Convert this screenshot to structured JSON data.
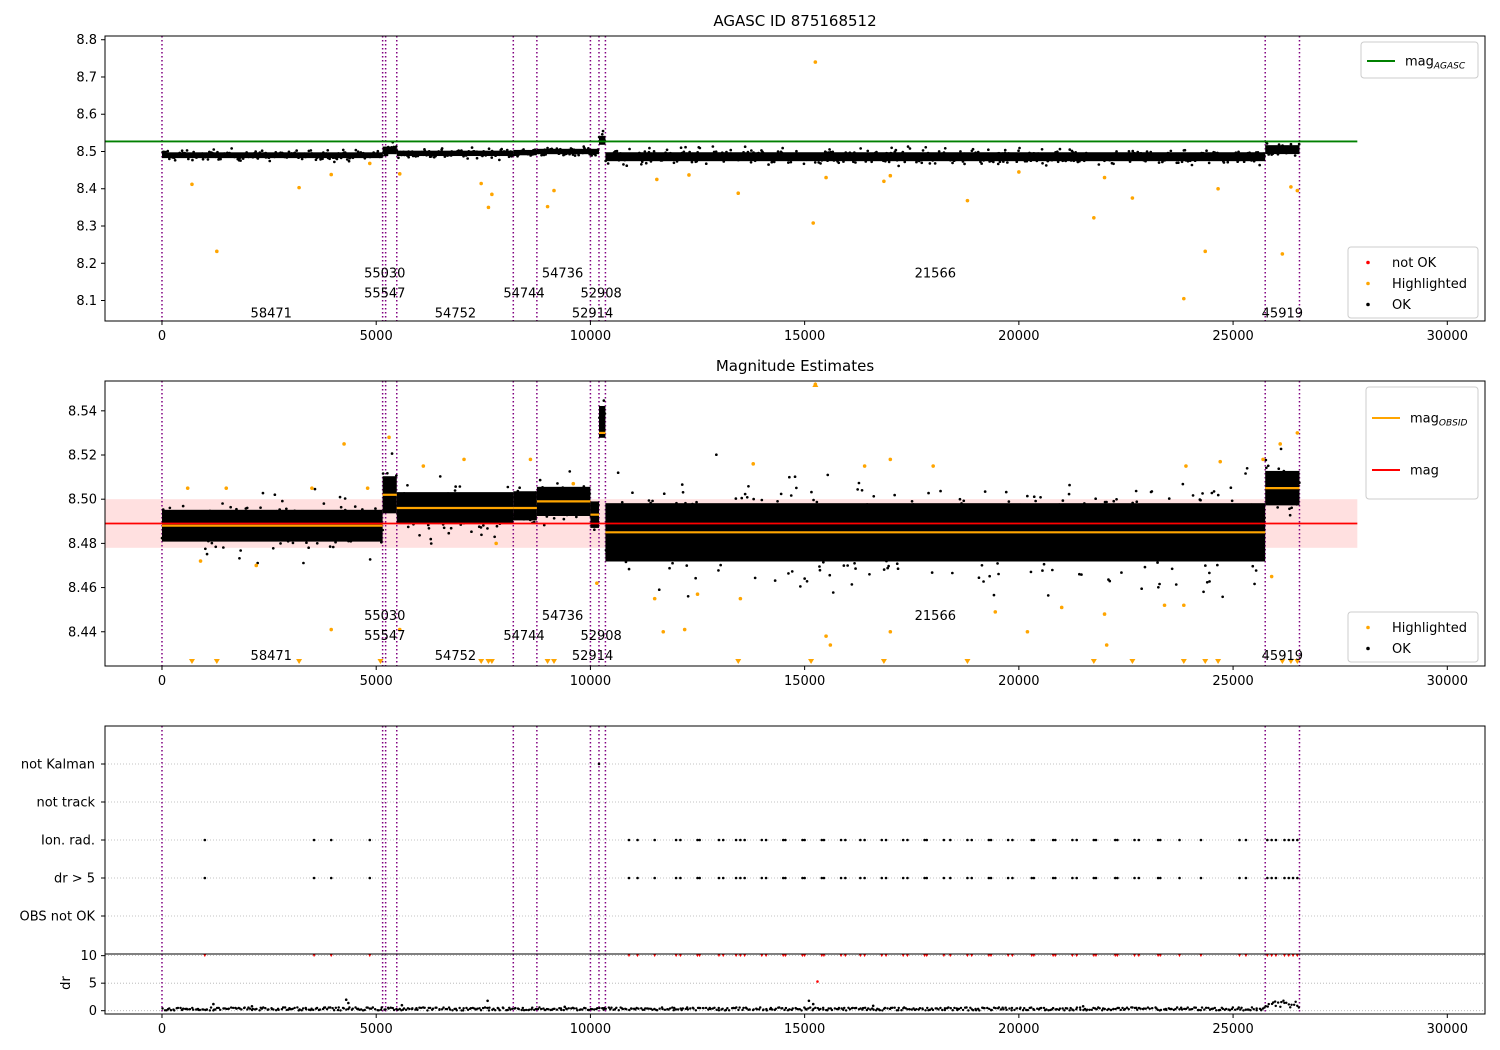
{
  "chart_data": [
    {
      "type": "scatter",
      "title": "AGASC ID 875168512",
      "xlabel": "",
      "ylabel": "",
      "xlim": [
        -1330,
        30880
      ],
      "ylim": [
        8.045,
        8.81
      ],
      "xticks": [
        0,
        5000,
        10000,
        15000,
        20000,
        25000,
        30000
      ],
      "yticks": [
        8.1,
        8.2,
        8.3,
        8.4,
        8.5,
        8.6,
        8.7,
        8.8
      ],
      "ytick_labels": [
        "8.1",
        "8.2",
        "8.3",
        "8.4",
        "8.5",
        "8.6",
        "8.7",
        "8.8"
      ],
      "grid": false,
      "legends": [
        {
          "loc": "upper right",
          "entries": [
            {
              "label": "mag",
              "sub": "AGASC",
              "color": "#008000",
              "marker": "line"
            }
          ]
        },
        {
          "loc": "lower right",
          "entries": [
            {
              "label": "not OK",
              "color": "#ff0000",
              "marker": "dot"
            },
            {
              "label": "Highlighted",
              "color": "#ffa500",
              "marker": "dot"
            },
            {
              "label": "OK",
              "color": "#000000",
              "marker": "dot"
            }
          ]
        }
      ],
      "hlines": [
        {
          "name": "mag_AGASC",
          "y": 8.527,
          "x_range": [
            -1330,
            27900
          ],
          "color": "#008000"
        }
      ],
      "ok_band": {
        "color": "#000000",
        "segments": [
          {
            "x": [
              0,
              5150
            ],
            "y_center": 8.49,
            "half_width": 0.013
          },
          {
            "x": [
              5150,
              5480
            ],
            "y_center": 8.503,
            "half_width": 0.017
          },
          {
            "x": [
              5480,
              8200
            ],
            "y_center": 8.495,
            "half_width": 0.012
          },
          {
            "x": [
              8200,
              8750
            ],
            "y_center": 8.497,
            "half_width": 0.012
          },
          {
            "x": [
              8750,
              10200
            ],
            "y_center": 8.5,
            "half_width": 0.012
          },
          {
            "x": [
              10200,
              10350
            ],
            "y_center": 8.53,
            "half_width": 0.02
          },
          {
            "x": [
              10350,
              25750
            ],
            "y_center": 8.486,
            "half_width": 0.02
          },
          {
            "x": [
              25750,
              26550
            ],
            "y_center": 8.505,
            "half_width": 0.02
          }
        ]
      },
      "highlighted_points": [
        [
          700,
          8.412
        ],
        [
          1280,
          8.232
        ],
        [
          3200,
          8.403
        ],
        [
          3950,
          8.438
        ],
        [
          4850,
          8.468
        ],
        [
          5550,
          8.44
        ],
        [
          7450,
          8.414
        ],
        [
          7620,
          8.35
        ],
        [
          7700,
          8.385
        ],
        [
          9000,
          8.352
        ],
        [
          9150,
          8.395
        ],
        [
          11550,
          8.425
        ],
        [
          12300,
          8.437
        ],
        [
          13450,
          8.388
        ],
        [
          15200,
          8.308
        ],
        [
          15250,
          8.74
        ],
        [
          15500,
          8.43
        ],
        [
          16850,
          8.42
        ],
        [
          17000,
          8.435
        ],
        [
          18800,
          8.368
        ],
        [
          20000,
          8.445
        ],
        [
          21750,
          8.322
        ],
        [
          22000,
          8.43
        ],
        [
          22650,
          8.375
        ],
        [
          23850,
          8.105
        ],
        [
          24350,
          8.232
        ],
        [
          24650,
          8.4
        ],
        [
          26150,
          8.225
        ],
        [
          26350,
          8.405
        ],
        [
          26500,
          8.395
        ]
      ],
      "not_ok_points": [],
      "vlines": {
        "color": "#800080",
        "style": "dotted",
        "x": [
          0,
          5150,
          5220,
          5480,
          8200,
          8750,
          10000,
          10200,
          10350,
          25750,
          26550
        ]
      },
      "obsid_labels": [
        {
          "text": "58471",
          "x": 2550,
          "y": 8.068
        },
        {
          "text": "55030",
          "x": 5200,
          "y": 8.175
        },
        {
          "text": "55547",
          "x": 5200,
          "y": 8.121
        },
        {
          "text": "54752",
          "x": 6850,
          "y": 8.068
        },
        {
          "text": "54744",
          "x": 8450,
          "y": 8.121
        },
        {
          "text": "54736",
          "x": 9350,
          "y": 8.175
        },
        {
          "text": "52908",
          "x": 10250,
          "y": 8.121
        },
        {
          "text": "52914",
          "x": 10050,
          "y": 8.068
        },
        {
          "text": "21566",
          "x": 18050,
          "y": 8.175
        },
        {
          "text": "45919",
          "x": 26150,
          "y": 8.068
        }
      ]
    },
    {
      "type": "scatter",
      "title": "Magnitude Estimates",
      "xlabel": "",
      "ylabel": "",
      "xlim": [
        -1330,
        30880
      ],
      "ylim": [
        8.4245,
        8.5535
      ],
      "xticks": [
        0,
        5000,
        10000,
        15000,
        20000,
        25000,
        30000
      ],
      "yticks": [
        8.44,
        8.46,
        8.48,
        8.5,
        8.52,
        8.54
      ],
      "ytick_labels": [
        "8.44",
        "8.46",
        "8.48",
        "8.50",
        "8.52",
        "8.54"
      ],
      "grid": false,
      "legends": [
        {
          "loc": "upper right",
          "entries": [
            {
              "label": "mag",
              "sub": "OBSID",
              "color": "#ffa500",
              "marker": "line"
            },
            {
              "label": "mag",
              "sub": "",
              "color": "#ff0000",
              "marker": "line"
            }
          ]
        },
        {
          "loc": "lower right",
          "entries": [
            {
              "label": "Highlighted",
              "color": "#ffa500",
              "marker": "dot"
            },
            {
              "label": "OK",
              "color": "#000000",
              "marker": "dot"
            }
          ]
        }
      ],
      "mag": {
        "y": 8.489,
        "band": [
          8.478,
          8.5
        ],
        "x_range": [
          -1330,
          27900
        ],
        "color": "#ff0000"
      },
      "obsid_means": [
        {
          "x": [
            0,
            5150
          ],
          "y": 8.488
        },
        {
          "x": [
            5150,
            5480
          ],
          "y": 8.502
        },
        {
          "x": [
            5480,
            8200
          ],
          "y": 8.496
        },
        {
          "x": [
            8200,
            8750
          ],
          "y": 8.496
        },
        {
          "x": [
            8750,
            10000
          ],
          "y": 8.499
        },
        {
          "x": [
            10000,
            10200
          ],
          "y": 8.493
        },
        {
          "x": [
            10200,
            10350
          ],
          "y": 8.53
        },
        {
          "x": [
            10350,
            25750
          ],
          "y": 8.485
        },
        {
          "x": [
            25750,
            26550
          ],
          "y": 8.505
        }
      ],
      "ok_band": {
        "color": "#000000",
        "segments": [
          {
            "x": [
              0,
              5150
            ],
            "y_center": 8.488,
            "half_width": 0.012
          },
          {
            "x": [
              5150,
              5480
            ],
            "y_center": 8.502,
            "half_width": 0.014
          },
          {
            "x": [
              5480,
              8200
            ],
            "y_center": 8.496,
            "half_width": 0.012
          },
          {
            "x": [
              8200,
              8750
            ],
            "y_center": 8.497,
            "half_width": 0.011
          },
          {
            "x": [
              8750,
              10000
            ],
            "y_center": 8.499,
            "half_width": 0.011
          },
          {
            "x": [
              10000,
              10200
            ],
            "y_center": 8.493,
            "half_width": 0.01
          },
          {
            "x": [
              10200,
              10350
            ],
            "y_center": 8.535,
            "half_width": 0.012
          },
          {
            "x": [
              10350,
              25750
            ],
            "y_center": 8.485,
            "half_width": 0.022
          },
          {
            "x": [
              25750,
              26550
            ],
            "y_center": 8.505,
            "half_width": 0.013
          }
        ]
      },
      "highlighted_points": [
        [
          600,
          8.505
        ],
        [
          900,
          8.472
        ],
        [
          1500,
          8.505
        ],
        [
          2200,
          8.47
        ],
        [
          3500,
          8.505
        ],
        [
          3950,
          8.441
        ],
        [
          4250,
          8.525
        ],
        [
          4800,
          8.505
        ],
        [
          5300,
          8.528
        ],
        [
          5550,
          8.441
        ],
        [
          6100,
          8.515
        ],
        [
          7050,
          8.518
        ],
        [
          7800,
          8.48
        ],
        [
          8600,
          8.518
        ],
        [
          9600,
          8.507
        ],
        [
          10150,
          8.462
        ],
        [
          11500,
          8.455
        ],
        [
          11700,
          8.44
        ],
        [
          12200,
          8.441
        ],
        [
          12500,
          8.457
        ],
        [
          13500,
          8.455
        ],
        [
          13800,
          8.516
        ],
        [
          15250,
          8.552
        ],
        [
          15500,
          8.438
        ],
        [
          15600,
          8.434
        ],
        [
          16400,
          8.515
        ],
        [
          17000,
          8.518
        ],
        [
          17000,
          8.44
        ],
        [
          18000,
          8.515
        ],
        [
          19450,
          8.449
        ],
        [
          20200,
          8.44
        ],
        [
          21000,
          8.451
        ],
        [
          22000,
          8.448
        ],
        [
          22050,
          8.434
        ],
        [
          23400,
          8.452
        ],
        [
          23850,
          8.452
        ],
        [
          23900,
          8.515
        ],
        [
          24700,
          8.517
        ],
        [
          25700,
          8.518
        ],
        [
          25900,
          8.465
        ],
        [
          26100,
          8.525
        ],
        [
          26500,
          8.53
        ]
      ],
      "offscale_low_markers": [
        700,
        1280,
        3200,
        5100,
        7450,
        7620,
        7700,
        9000,
        9150,
        13450,
        15150,
        16850,
        18800,
        21750,
        22650,
        23850,
        24350,
        24650,
        26150,
        26350,
        26500
      ],
      "vlines": {
        "color": "#800080",
        "style": "dotted",
        "x": [
          0,
          5150,
          5220,
          5480,
          8200,
          8750,
          10000,
          10200,
          10350,
          25750,
          26550
        ]
      },
      "obsid_labels": [
        {
          "text": "58471",
          "x": 2550,
          "y": 8.4295
        },
        {
          "text": "55030",
          "x": 5200,
          "y": 8.4475
        },
        {
          "text": "55547",
          "x": 5200,
          "y": 8.4385
        },
        {
          "text": "54752",
          "x": 6850,
          "y": 8.4295
        },
        {
          "text": "54744",
          "x": 8450,
          "y": 8.4385
        },
        {
          "text": "54736",
          "x": 9350,
          "y": 8.4475
        },
        {
          "text": "52908",
          "x": 10250,
          "y": 8.4385
        },
        {
          "text": "52914",
          "x": 10050,
          "y": 8.4295
        },
        {
          "text": "21566",
          "x": 18050,
          "y": 8.4475
        },
        {
          "text": "45919",
          "x": 26150,
          "y": 8.4295
        }
      ]
    },
    {
      "type": "scatter",
      "title": "",
      "xlabel": "",
      "ylabel": "",
      "xlim": [
        -1330,
        30880
      ],
      "categories": [
        "not Kalman",
        "not track",
        "Ion. rad.",
        "dr > 5",
        "OBS not OK"
      ],
      "grid": true,
      "flag_x": [
        1000,
        3550,
        3950,
        4850,
        10900,
        11100,
        11500,
        12000,
        12100,
        12500,
        12550,
        13000,
        13100,
        13400,
        13500,
        13600,
        14000,
        14100,
        14500,
        14550,
        14950,
        15000,
        15400,
        15450,
        15850,
        15950,
        16300,
        16400,
        16800,
        16900,
        17300,
        17400,
        17800,
        17850,
        18250,
        18400,
        18800,
        18900,
        19300,
        19350,
        19750,
        19850,
        20300,
        20350,
        20800,
        20850,
        21250,
        21350,
        21750,
        21800,
        22250,
        22300,
        22700,
        22800,
        23250,
        23300,
        23750,
        24250,
        25150,
        25300,
        25800,
        25900,
        26000,
        26200,
        26300,
        26400,
        26500
      ],
      "flagged_rows": [
        "Ion. rad.",
        "dr > 5"
      ],
      "vlines": {
        "color": "#800080",
        "style": "dotted",
        "x": [
          0,
          5150,
          5220,
          5480,
          8200,
          8750,
          10000,
          10200,
          10350,
          25750,
          26550
        ]
      }
    },
    {
      "type": "scatter",
      "title": "",
      "xlabel": "",
      "ylabel": "dr",
      "xlim": [
        -1330,
        30880
      ],
      "ylim": [
        -0.6,
        10.3
      ],
      "xticks": [
        0,
        5000,
        10000,
        15000,
        20000,
        25000,
        30000
      ],
      "yticks": [
        0,
        5,
        10
      ],
      "ytick_labels": [
        "0",
        "5",
        "10"
      ],
      "grid": true,
      "baseline": {
        "color": "#000000",
        "segments": [
          {
            "x": [
              0,
              25750
            ],
            "y_low": 0.05,
            "y_high": 0.6
          },
          {
            "x": [
              25750,
              26550
            ],
            "y_low": 0.5,
            "y_high": 2.0
          }
        ]
      },
      "spikes": [
        [
          4300,
          2.0
        ],
        [
          4350,
          1.4
        ],
        [
          1200,
          1.2
        ],
        [
          2100,
          0.8
        ],
        [
          5600,
          1.0
        ],
        [
          7600,
          1.8
        ],
        [
          9400,
          0.7
        ],
        [
          15100,
          1.8
        ],
        [
          15300,
          5.3
        ],
        [
          15200,
          1.2
        ],
        [
          16600,
          0.9
        ],
        [
          21500,
          0.8
        ]
      ],
      "capped_red_markers_y": 10,
      "capped_red_markers_x": [
        1000,
        3550,
        3950,
        4850,
        10900,
        11100,
        11500,
        12000,
        12100,
        12500,
        12550,
        13000,
        13100,
        13400,
        13500,
        13600,
        14000,
        14100,
        14500,
        14550,
        14950,
        15000,
        15400,
        15450,
        15850,
        15950,
        16300,
        16400,
        16800,
        16900,
        17300,
        17400,
        17800,
        17850,
        18250,
        18400,
        18800,
        18900,
        19300,
        19350,
        19750,
        19850,
        20300,
        20350,
        20800,
        20850,
        21250,
        21350,
        21750,
        21800,
        22250,
        22300,
        22700,
        22800,
        23250,
        23300,
        23750,
        24250,
        25150,
        25300,
        25800,
        25900,
        26000,
        26200,
        26300,
        26400,
        26500
      ],
      "vlines": {
        "color": "#800080",
        "style": "dotted",
        "x": [
          0,
          5150,
          5220,
          5480,
          8200,
          8750,
          10000,
          10200,
          10350,
          25750,
          26550
        ]
      }
    }
  ]
}
